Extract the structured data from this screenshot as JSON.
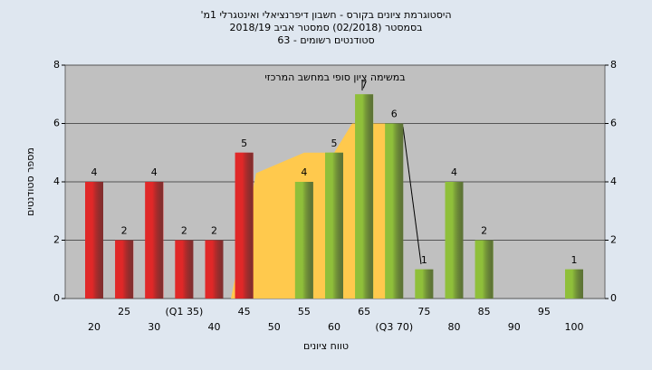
{
  "chart_data": {
    "type": "bar",
    "title": [
      "היסטוגרמת ציונים בקורס - חשבון דיפרנציאלי ואינטגרלי 1מ'",
      "בסמסטר (02/2018) סמסטר אביב 2018/19",
      "סטודנטים רשומים - 63"
    ],
    "annotation": "במשימה ציון סופי במחשב המרכזי",
    "x_label": "טווח ציונים",
    "y_label": "מספר סטודנטים",
    "categories": [
      "20",
      "25",
      "30",
      "(Q1 35)",
      "40",
      "45",
      "50",
      "55",
      "60",
      "65",
      "(Q3 70)",
      "75",
      "80",
      "85",
      "90",
      "95",
      "100"
    ],
    "values": [
      4,
      2,
      4,
      2,
      2,
      5,
      0,
      4,
      5,
      7,
      6,
      1,
      4,
      2,
      0,
      0,
      1
    ],
    "colors": [
      "#e02828",
      "#e02828",
      "#e02828",
      "#e02828",
      "#e02828",
      "#e02828",
      "#e02828",
      "#8fbf3a",
      "#8fbf3a",
      "#8fbf3a",
      "#8fbf3a",
      "#8fbf3a",
      "#8fbf3a",
      "#8fbf3a",
      "#8fbf3a",
      "#8fbf3a",
      "#8fbf3a"
    ],
    "area": {
      "color": "#ffc94d",
      "x": [
        42.8,
        47,
        55,
        60,
        63,
        69.5,
        71.5
      ],
      "values": [
        0,
        4.3,
        5,
        5,
        6,
        6,
        0
      ]
    },
    "ylim": [
      0,
      8
    ],
    "yticks": [
      0,
      2,
      4,
      6,
      8
    ],
    "grid": true
  }
}
